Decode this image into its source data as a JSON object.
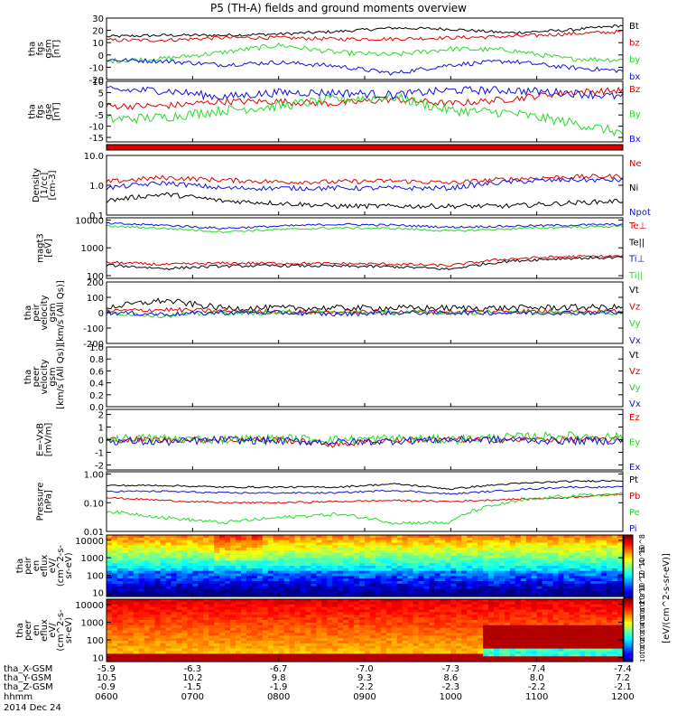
{
  "title": "P5 (TH-A) fields and ground moments overview",
  "colors": {
    "black": "#000000",
    "red": "#e00000",
    "green": "#22dd22",
    "blue": "#1010e0"
  },
  "chart_data": [
    {
      "type": "line",
      "panel": "fgs_gsm",
      "ylabel": [
        "tha",
        "fgs",
        "gsm",
        "[nT]"
      ],
      "yticks": [
        "30",
        "20",
        "10",
        "0",
        "-10",
        "-20"
      ],
      "ylim": [
        -20,
        30
      ],
      "series": [
        {
          "name": "Bt",
          "color": "#000000",
          "base": [
            15,
            16,
            16,
            17,
            19,
            22,
            21,
            18,
            20,
            24
          ],
          "noise": 1.2
        },
        {
          "name": "bz",
          "color": "#e00000",
          "base": [
            12,
            12,
            14,
            14,
            13,
            13,
            14,
            15,
            17,
            19
          ],
          "noise": 1.5
        },
        {
          "name": "by",
          "color": "#22dd22",
          "base": [
            -5,
            -3,
            2,
            8,
            2,
            0,
            5,
            4,
            -3,
            -4
          ],
          "noise": 2.0
        },
        {
          "name": "bx",
          "color": "#1010e0",
          "base": [
            -4,
            -5,
            -8,
            -6,
            -9,
            -15,
            -8,
            -5,
            -10,
            -13
          ],
          "noise": 1.8
        }
      ]
    },
    {
      "type": "line",
      "panel": "fgs_gse",
      "ylabel": [
        "tha",
        "fgs",
        "gse",
        "[nT]"
      ],
      "yticks": [
        "10",
        "5",
        "0",
        "-5",
        "-10",
        "-15"
      ],
      "ylim": [
        -17,
        10
      ],
      "series": [
        {
          "name": "Bz",
          "color": "#e00000",
          "base": [
            -1,
            -1,
            1,
            1,
            0,
            2,
            0,
            2,
            5,
            6
          ],
          "noise": 1.5
        },
        {
          "name": "By",
          "color": "#22dd22",
          "base": [
            -7,
            -6,
            -3,
            -1,
            2,
            3,
            -3,
            -4,
            -8,
            -13
          ],
          "noise": 2.2
        },
        {
          "name": "Bx",
          "color": "#1010e0",
          "base": [
            6,
            6,
            3,
            5,
            5,
            4,
            6,
            6,
            5,
            3
          ],
          "noise": 1.8
        }
      ]
    },
    {
      "type": "line",
      "panel": "density",
      "yscale": "log",
      "ylabel": [
        "Density",
        "[1/cc]",
        "[cm-3]"
      ],
      "yticks": [
        "10.0",
        "1.0",
        "0.1"
      ],
      "ylim": [
        0.1,
        10
      ],
      "series": [
        {
          "name": "Ne",
          "color": "#e00000",
          "base": [
            1.3,
            1.8,
            1.5,
            1.3,
            1.3,
            1.4,
            1.2,
            1.6,
            1.9,
            2.0
          ],
          "noise": 0.08
        },
        {
          "name": "Ni",
          "color": "#000000",
          "base": [
            0.3,
            0.5,
            0.3,
            0.25,
            0.2,
            0.2,
            0.2,
            0.2,
            0.25,
            0.3
          ],
          "noise": 0.08
        },
        {
          "name": "Npot",
          "color": "#1010e0",
          "base": [
            0.8,
            1.2,
            0.8,
            0.8,
            0.8,
            0.8,
            0.8,
            1.3,
            1.5,
            1.5
          ],
          "noise": 0.08
        }
      ]
    },
    {
      "type": "line",
      "panel": "temperature",
      "yscale": "log",
      "ylabel": [
        "magt3",
        "[eV]"
      ],
      "yticks": [
        "10000",
        "1000",
        "100"
      ],
      "ylim": [
        80,
        12000
      ],
      "series": [
        {
          "name": "Te⊥",
          "color": "#e00000",
          "base": [
            300,
            250,
            280,
            280,
            270,
            260,
            230,
            400,
            480,
            500
          ],
          "noise": 0.05
        },
        {
          "name": "Te||",
          "color": "#000000",
          "base": [
            240,
            180,
            220,
            230,
            220,
            210,
            170,
            330,
            420,
            450
          ],
          "noise": 0.05
        },
        {
          "name": "Ti⊥",
          "color": "#1010e0",
          "base": [
            7500,
            6500,
            5000,
            6000,
            7000,
            6500,
            5500,
            6000,
            6500,
            7000
          ],
          "noise": 0.04
        },
        {
          "name": "Ti||",
          "color": "#22dd22",
          "base": [
            6000,
            5000,
            3800,
            4500,
            5200,
            5000,
            4000,
            4800,
            5500,
            6000
          ],
          "noise": 0.04
        }
      ]
    },
    {
      "type": "line",
      "panel": "peir_velocity",
      "ylabel": [
        "tha",
        "peir",
        "velocity",
        "gsm",
        "[km/s (All Qs)]"
      ],
      "yticks": [
        "200",
        "100",
        "0",
        "-100",
        "-200"
      ],
      "ylim": [
        -200,
        200
      ],
      "series": [
        {
          "name": "Vt",
          "color": "#000000",
          "base": [
            35,
            80,
            30,
            30,
            30,
            30,
            30,
            30,
            35,
            35
          ],
          "noise": 20
        },
        {
          "name": "Vz",
          "color": "#e00000",
          "base": [
            10,
            20,
            10,
            5,
            5,
            5,
            5,
            10,
            10,
            10
          ],
          "noise": 15
        },
        {
          "name": "Vy",
          "color": "#22dd22",
          "base": [
            0,
            -20,
            0,
            0,
            0,
            0,
            0,
            0,
            0,
            0
          ],
          "noise": 15
        },
        {
          "name": "Vx",
          "color": "#1010e0",
          "base": [
            0,
            -10,
            0,
            0,
            -10,
            0,
            0,
            0,
            0,
            0
          ],
          "noise": 15
        }
      ]
    },
    {
      "type": "line",
      "panel": "peer_velocity",
      "ylabel": [
        "tha",
        "peer",
        "velocity",
        "gsm",
        "[km/s (All Qs)]"
      ],
      "yticks": [
        "1.0",
        "0.8",
        "0.6",
        "0.4",
        "0.2",
        "0.0"
      ],
      "ylim": [
        0,
        1
      ],
      "series": [
        {
          "name": "Vt",
          "color": "#000000",
          "base": [],
          "noise": 0
        },
        {
          "name": "Vz",
          "color": "#e00000",
          "base": [],
          "noise": 0
        },
        {
          "name": "Vy",
          "color": "#22dd22",
          "base": [],
          "noise": 0
        },
        {
          "name": "Vx",
          "color": "#1010e0",
          "base": [],
          "noise": 0
        }
      ]
    },
    {
      "type": "line",
      "panel": "efield",
      "ylabel": [
        "E=-VxB",
        "[mV/m]"
      ],
      "yticks": [
        "2",
        "1",
        "0",
        "-1",
        "-2"
      ],
      "ylim": [
        -2.4,
        2.4
      ],
      "series": [
        {
          "name": "Ez",
          "color": "#e00000",
          "base": [
            0,
            0,
            0,
            0,
            -0.4,
            0,
            0,
            0,
            0,
            0
          ],
          "noise": 0.25
        },
        {
          "name": "Ey",
          "color": "#22dd22",
          "base": [
            0.1,
            0.1,
            0,
            0.1,
            0,
            0.1,
            0,
            0.2,
            0.3,
            0.2
          ],
          "noise": 0.35
        },
        {
          "name": "Ex",
          "color": "#1010e0",
          "base": [
            -0.1,
            -0.2,
            0,
            -0.1,
            -0.2,
            -0.1,
            0,
            0,
            -0.1,
            -0.1
          ],
          "noise": 0.3
        }
      ]
    },
    {
      "type": "line",
      "panel": "pressure",
      "yscale": "log",
      "ylabel": [
        "Pressure",
        "[nPa]"
      ],
      "yticks": [
        "1.00",
        "0.10",
        "0.01"
      ],
      "ylim": [
        0.01,
        1.2
      ],
      "series": [
        {
          "name": "Pt",
          "color": "#000000",
          "base": [
            0.4,
            0.4,
            0.35,
            0.35,
            0.35,
            0.45,
            0.3,
            0.45,
            0.55,
            0.6
          ],
          "noise": 0.03
        },
        {
          "name": "Pb",
          "color": "#e00000",
          "base": [
            0.15,
            0.12,
            0.1,
            0.1,
            0.11,
            0.12,
            0.11,
            0.13,
            0.15,
            0.2
          ],
          "noise": 0.03
        },
        {
          "name": "Pe",
          "color": "#22dd22",
          "base": [
            0.05,
            0.03,
            0.02,
            0.03,
            0.04,
            0.02,
            0.02,
            0.1,
            0.17,
            0.2
          ],
          "noise": 0.06
        },
        {
          "name": "Pi",
          "color": "#1010e0",
          "base": [
            0.25,
            0.25,
            0.22,
            0.22,
            0.22,
            0.27,
            0.2,
            0.27,
            0.35,
            0.35
          ],
          "noise": 0.03
        }
      ]
    },
    {
      "type": "heatmap",
      "panel": "peir_eflux",
      "yscale": "log",
      "ylabel": [
        "tha",
        "peir",
        "en",
        "eflux",
        "eV/",
        "(cm^2-s-",
        "sr-eV)"
      ],
      "yticks": [
        "10000",
        "1000",
        "100",
        "10"
      ],
      "ylim": [
        6,
        20000
      ]
    },
    {
      "type": "heatmap",
      "panel": "peer_eflux",
      "yscale": "log",
      "ylabel": [
        "tha",
        "peer",
        "en",
        "eflux",
        "eV/",
        "(cm^2-s-",
        "sr-eV)"
      ],
      "yticks": [
        "10000",
        "1000",
        "100",
        "10"
      ],
      "ylim": [
        6,
        20000
      ]
    }
  ],
  "colorbar": {
    "label": "[eV/(cm^2-s-sr-eV)]",
    "top_ticks": [
      "10^8",
      "10^6",
      "10^4",
      "10^2",
      "10^0"
    ],
    "bottom_ticks": [
      "10^8",
      "10^7",
      "10^6",
      "10^5",
      "10^4",
      "10^3",
      "10^2",
      "10^1"
    ]
  },
  "xaxis": {
    "rows": [
      {
        "label": "tha_X-GSM",
        "values": [
          "-5.9",
          "-6.3",
          "-6.7",
          "-7.0",
          "-7.3",
          "-7.4",
          "-7.4"
        ]
      },
      {
        "label": "tha_Y-GSM",
        "values": [
          "10.5",
          "10.2",
          "9.8",
          "9.3",
          "8.6",
          "8.0",
          "7.2"
        ]
      },
      {
        "label": "tha_Z-GSM",
        "values": [
          "-0.9",
          "-1.5",
          "-1.9",
          "-2.2",
          "-2.3",
          "-2.2",
          "-2.1"
        ]
      },
      {
        "label": "hhmm",
        "values": [
          "0600",
          "0700",
          "0800",
          "0900",
          "1000",
          "1100",
          "1200"
        ]
      }
    ],
    "date": "2014 Dec 24"
  }
}
